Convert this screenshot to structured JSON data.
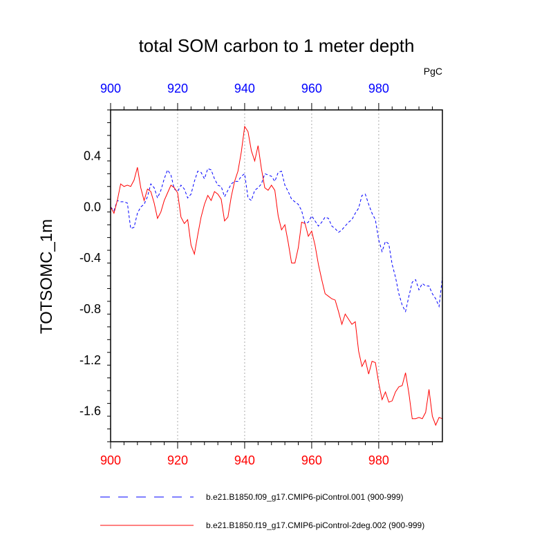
{
  "chart_data": {
    "type": "line",
    "title": "total SOM carbon to 1 meter depth",
    "units": "PgC",
    "ylabel": "TOTSOMC_1m",
    "xlabel": "",
    "xlim": [
      900,
      999
    ],
    "ylim": [
      -1.84,
      0.76
    ],
    "x_ticks": [
      900,
      920,
      940,
      960,
      980
    ],
    "x_tick_labels": [
      "900",
      "920",
      "940",
      "960",
      "980"
    ],
    "y_ticks": [
      0.4,
      0.0,
      -0.4,
      -0.8,
      -1.2,
      -1.6
    ],
    "y_tick_labels": [
      "0.4",
      "0.0",
      "-0.4",
      "-0.8",
      "-1.2",
      "-1.6"
    ],
    "top_axis_color": "#0000ff",
    "bottom_axis_color": "#ff0000",
    "grid": "vertical dotted at major x ticks",
    "x": [
      900,
      901,
      902,
      903,
      904,
      905,
      906,
      907,
      908,
      909,
      910,
      911,
      912,
      913,
      914,
      915,
      916,
      917,
      918,
      919,
      920,
      921,
      922,
      923,
      924,
      925,
      926,
      927,
      928,
      929,
      930,
      931,
      932,
      933,
      934,
      935,
      936,
      937,
      938,
      939,
      940,
      941,
      942,
      943,
      944,
      945,
      946,
      947,
      948,
      949,
      950,
      951,
      952,
      953,
      954,
      955,
      956,
      957,
      958,
      959,
      960,
      961,
      962,
      963,
      964,
      965,
      966,
      967,
      968,
      969,
      970,
      971,
      972,
      973,
      974,
      975,
      976,
      977,
      978,
      979,
      980,
      981,
      982,
      983,
      984,
      985,
      986,
      987,
      988,
      989,
      990,
      991,
      992,
      993,
      994,
      995,
      996,
      997,
      998,
      999
    ],
    "series": [
      {
        "name": "b.e21.B1850.f09_g17.CMIP6-piControl.001 (900-999)",
        "color": "#0000ff",
        "style": "dashed",
        "values": [
          0.0,
          -0.03,
          0.05,
          0.04,
          0.04,
          0.03,
          -0.17,
          -0.16,
          -0.05,
          0.0,
          0.02,
          0.08,
          0.18,
          0.15,
          0.07,
          0.13,
          0.22,
          0.29,
          0.25,
          0.14,
          0.12,
          0.17,
          0.14,
          0.07,
          0.1,
          0.2,
          0.28,
          0.27,
          0.22,
          0.3,
          0.29,
          0.22,
          0.17,
          0.16,
          0.08,
          0.13,
          0.18,
          0.2,
          0.2,
          0.24,
          0.26,
          0.07,
          0.05,
          0.13,
          0.15,
          0.18,
          0.26,
          0.25,
          0.24,
          0.2,
          0.27,
          0.28,
          0.17,
          0.12,
          0.06,
          0.04,
          0.02,
          -0.03,
          -0.13,
          -0.12,
          -0.07,
          -0.11,
          -0.15,
          -0.12,
          -0.08,
          -0.09,
          -0.15,
          -0.17,
          -0.2,
          -0.18,
          -0.15,
          -0.12,
          -0.1,
          -0.05,
          -0.01,
          0.09,
          0.1,
          0.02,
          -0.05,
          -0.1,
          -0.26,
          -0.35,
          -0.27,
          -0.29,
          -0.45,
          -0.55,
          -0.68,
          -0.77,
          -0.82,
          -0.7,
          -0.59,
          -0.57,
          -0.65,
          -0.6,
          -0.62,
          -0.62,
          -0.68,
          -0.72,
          -0.78,
          -0.55
        ]
      },
      {
        "name": "b.e21.B1850.f19_g17.CMIP6-piControl-2deg.002 (900-999)",
        "color": "#ff0000",
        "style": "solid",
        "values": [
          0.0,
          -0.05,
          0.05,
          0.18,
          0.16,
          0.17,
          0.16,
          0.21,
          0.31,
          0.15,
          0.05,
          0.14,
          0.12,
          0.03,
          -0.09,
          -0.04,
          0.05,
          0.11,
          0.17,
          0.15,
          0.11,
          -0.08,
          -0.13,
          -0.1,
          -0.3,
          -0.37,
          -0.22,
          -0.08,
          0.02,
          0.09,
          0.05,
          0.12,
          0.1,
          0.06,
          -0.11,
          -0.08,
          0.08,
          0.2,
          0.28,
          0.43,
          0.63,
          0.59,
          0.44,
          0.36,
          0.48,
          0.3,
          0.15,
          0.13,
          0.17,
          0.13,
          -0.07,
          -0.18,
          -0.14,
          -0.28,
          -0.44,
          -0.44,
          -0.32,
          -0.12,
          -0.13,
          -0.23,
          -0.19,
          -0.3,
          -0.45,
          -0.57,
          -0.68,
          -0.7,
          -0.72,
          -0.73,
          -0.82,
          -0.92,
          -0.84,
          -0.88,
          -0.92,
          -0.9,
          -1.13,
          -1.25,
          -1.2,
          -1.31,
          -1.21,
          -1.22,
          -1.38,
          -1.51,
          -1.45,
          -1.53,
          -1.52,
          -1.45,
          -1.41,
          -1.4,
          -1.3,
          -1.46,
          -1.66,
          -1.66,
          -1.65,
          -1.66,
          -1.61,
          -1.43,
          -1.64,
          -1.71,
          -1.65,
          -1.66
        ]
      }
    ]
  }
}
